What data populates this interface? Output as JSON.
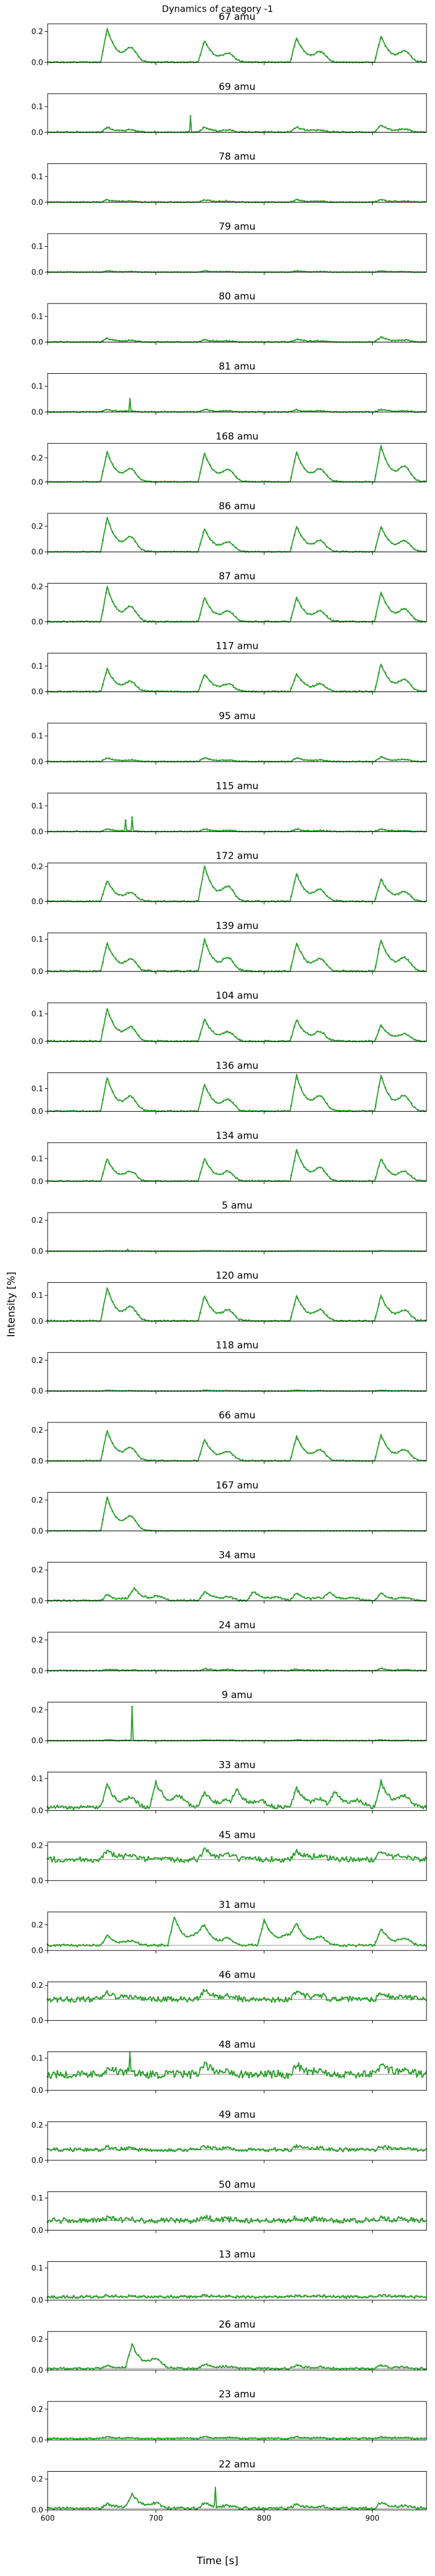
{
  "figure": {
    "title": "Dynamics of category -1",
    "ylabel": "Intensity [%]",
    "xlabel": "Time [s]",
    "series_color": "#2ca02c",
    "baseline_color": "#888888"
  },
  "chart_data": {
    "type": "line",
    "x_range": [
      600,
      950
    ],
    "x_ticks": [
      600,
      700,
      800,
      900
    ],
    "x_tick_labels": [
      "600",
      "700",
      "800",
      "900"
    ],
    "peak_times": [
      655,
      745,
      830,
      908
    ],
    "panels": [
      {
        "title": "67 amu",
        "ylim": [
          0,
          0.25
        ],
        "yticks": [
          0.0,
          0.2
        ],
        "ytick_labels": [
          "0.0",
          "0.2"
        ],
        "amps": [
          0.22,
          0.14,
          0.16,
          0.17
        ],
        "noise": 0.004
      },
      {
        "title": "69 amu",
        "ylim": [
          0,
          0.15
        ],
        "yticks": [
          0.0,
          0.1
        ],
        "ytick_labels": [
          "0.0",
          "0.1"
        ],
        "amps": [
          0.02,
          0.02,
          0.02,
          0.03
        ],
        "noise": 0.003,
        "spikes": [
          [
            732,
            0.06
          ]
        ]
      },
      {
        "title": "78 amu",
        "ylim": [
          0,
          0.15
        ],
        "yticks": [
          0.0,
          0.1
        ],
        "ytick_labels": [
          "0.0",
          "0.1"
        ],
        "amps": [
          0.01,
          0.01,
          0.01,
          0.01
        ],
        "noise": 0.002
      },
      {
        "title": "79 amu",
        "ylim": [
          0,
          0.15
        ],
        "yticks": [
          0.0,
          0.1
        ],
        "ytick_labels": [
          "0.0",
          "0.1"
        ],
        "amps": [
          0.005,
          0.005,
          0.005,
          0.005
        ],
        "noise": 0.001
      },
      {
        "title": "80 amu",
        "ylim": [
          0,
          0.15
        ],
        "yticks": [
          0.0,
          0.1
        ],
        "ytick_labels": [
          "0.0",
          "0.1"
        ],
        "amps": [
          0.015,
          0.01,
          0.012,
          0.02
        ],
        "noise": 0.002
      },
      {
        "title": "81 amu",
        "ylim": [
          0,
          0.15
        ],
        "yticks": [
          0.0,
          0.1
        ],
        "ytick_labels": [
          "0.0",
          "0.1"
        ],
        "amps": [
          0.01,
          0.01,
          0.01,
          0.01
        ],
        "noise": 0.002,
        "spikes": [
          [
            676,
            0.05
          ]
        ]
      },
      {
        "title": "168 amu",
        "ylim": [
          0,
          0.32
        ],
        "yticks": [
          0.0,
          0.2
        ],
        "ytick_labels": [
          "0.0",
          "0.2"
        ],
        "amps": [
          0.25,
          0.24,
          0.25,
          0.3
        ],
        "noise": 0.004
      },
      {
        "title": "86 amu",
        "ylim": [
          0,
          0.3
        ],
        "yticks": [
          0.0,
          0.2
        ],
        "ytick_labels": [
          "0.0",
          "0.2"
        ],
        "amps": [
          0.27,
          0.18,
          0.2,
          0.2
        ],
        "noise": 0.004
      },
      {
        "title": "87 amu",
        "ylim": [
          0,
          0.22
        ],
        "yticks": [
          0.0,
          0.2
        ],
        "ytick_labels": [
          "0.0",
          "0.2"
        ],
        "amps": [
          0.2,
          0.14,
          0.14,
          0.17
        ],
        "noise": 0.004
      },
      {
        "title": "117 amu",
        "ylim": [
          0,
          0.15
        ],
        "yticks": [
          0.0,
          0.1
        ],
        "ytick_labels": [
          "0.0",
          "0.1"
        ],
        "amps": [
          0.09,
          0.07,
          0.07,
          0.11
        ],
        "noise": 0.003
      },
      {
        "title": "95 amu",
        "ylim": [
          0,
          0.15
        ],
        "yticks": [
          0.0,
          0.1
        ],
        "ytick_labels": [
          "0.0",
          "0.1"
        ],
        "amps": [
          0.015,
          0.015,
          0.015,
          0.02
        ],
        "noise": 0.002
      },
      {
        "title": "115 amu",
        "ylim": [
          0,
          0.15
        ],
        "yticks": [
          0.0,
          0.1
        ],
        "ytick_labels": [
          "0.0",
          "0.1"
        ],
        "amps": [
          0.01,
          0.01,
          0.01,
          0.01
        ],
        "noise": 0.002,
        "spikes": [
          [
            672,
            0.04
          ],
          [
            678,
            0.05
          ]
        ]
      },
      {
        "title": "172 amu",
        "ylim": [
          0,
          0.22
        ],
        "yticks": [
          0.0,
          0.2
        ],
        "ytick_labels": [
          "0.0",
          "0.2"
        ],
        "amps": [
          0.12,
          0.2,
          0.16,
          0.13
        ],
        "noise": 0.004
      },
      {
        "title": "139 amu",
        "ylim": [
          0,
          0.12
        ],
        "yticks": [
          0.0,
          0.1
        ],
        "ytick_labels": [
          "0.0",
          "0.1"
        ],
        "amps": [
          0.09,
          0.1,
          0.09,
          0.1
        ],
        "noise": 0.003
      },
      {
        "title": "104 amu",
        "ylim": [
          0,
          0.14
        ],
        "yticks": [
          0.0,
          0.1
        ],
        "ytick_labels": [
          "0.0",
          "0.1"
        ],
        "amps": [
          0.12,
          0.08,
          0.08,
          0.06
        ],
        "noise": 0.003
      },
      {
        "title": "136 amu",
        "ylim": [
          0,
          0.17
        ],
        "yticks": [
          0.0,
          0.1
        ],
        "ytick_labels": [
          "0.0",
          "0.1"
        ],
        "amps": [
          0.15,
          0.12,
          0.16,
          0.16
        ],
        "noise": 0.003
      },
      {
        "title": "134 amu",
        "ylim": [
          0,
          0.17
        ],
        "yticks": [
          0.0,
          0.1
        ],
        "ytick_labels": [
          "0.0",
          "0.1"
        ],
        "amps": [
          0.1,
          0.1,
          0.14,
          0.1
        ],
        "noise": 0.003
      },
      {
        "title": "5 amu",
        "ylim": [
          0,
          0.25
        ],
        "yticks": [
          0.0,
          0.2
        ],
        "ytick_labels": [
          "0.0",
          "0.2"
        ],
        "amps": [
          0.003,
          0.003,
          0.003,
          0.003
        ],
        "noise": 0.001,
        "spikes": [
          [
            674,
            0.012
          ]
        ]
      },
      {
        "title": "120 amu",
        "ylim": [
          0,
          0.15
        ],
        "yticks": [
          0.0,
          0.1
        ],
        "ytick_labels": [
          "0.0",
          "0.1"
        ],
        "amps": [
          0.13,
          0.1,
          0.1,
          0.1
        ],
        "noise": 0.003
      },
      {
        "title": "118 amu",
        "ylim": [
          0,
          0.25
        ],
        "yticks": [
          0.0,
          0.2
        ],
        "ytick_labels": [
          "0.0",
          "0.2"
        ],
        "amps": [
          0.005,
          0.005,
          0.005,
          0.005
        ],
        "noise": 0.001
      },
      {
        "title": "66 amu",
        "ylim": [
          0,
          0.25
        ],
        "yticks": [
          0.0,
          0.2
        ],
        "ytick_labels": [
          "0.0",
          "0.2"
        ],
        "amps": [
          0.2,
          0.14,
          0.16,
          0.17
        ],
        "noise": 0.004
      },
      {
        "title": "167 amu",
        "ylim": [
          0,
          0.25
        ],
        "yticks": [
          0.0,
          0.2
        ],
        "ytick_labels": [
          "0.0",
          "0.2"
        ],
        "amps": [
          0.22,
          0.0,
          0.0,
          0.0
        ],
        "noise": 0.002
      },
      {
        "title": "34 amu",
        "ylim": [
          0,
          0.25
        ],
        "yticks": [
          0.0,
          0.2
        ],
        "ytick_labels": [
          "0.0",
          "0.2"
        ],
        "amps": [
          0.04,
          0.06,
          0.05,
          0.05
        ],
        "noise": 0.006,
        "extra": [
          [
            680,
            0.07
          ],
          [
            790,
            0.06
          ],
          [
            860,
            0.05
          ]
        ]
      },
      {
        "title": "24 amu",
        "ylim": [
          0,
          0.25
        ],
        "yticks": [
          0.0,
          0.2
        ],
        "ytick_labels": [
          "0.0",
          "0.2"
        ],
        "amps": [
          0.01,
          0.015,
          0.01,
          0.015
        ],
        "noise": 0.004
      },
      {
        "title": "9 amu",
        "ylim": [
          0,
          0.25
        ],
        "yticks": [
          0.0,
          0.2
        ],
        "ytick_labels": [
          "0.0",
          "0.2"
        ],
        "amps": [
          0.005,
          0.005,
          0.005,
          0.005
        ],
        "noise": 0.002,
        "spikes": [
          [
            678,
            0.22
          ]
        ]
      },
      {
        "title": "33 amu",
        "ylim": [
          0,
          0.12
        ],
        "yticks": [
          0.0,
          0.1
        ],
        "ytick_labels": [
          "0.0",
          "0.1"
        ],
        "amps": [
          0.07,
          0.05,
          0.06,
          0.08
        ],
        "noise": 0.006,
        "base": 0.01,
        "extra": [
          [
            700,
            0.08
          ],
          [
            775,
            0.05
          ],
          [
            865,
            0.05
          ]
        ]
      },
      {
        "title": "45 amu",
        "ylim": [
          0,
          0.22
        ],
        "yticks": [
          0.0,
          0.2
        ],
        "ytick_labels": [
          "0.0",
          "0.2"
        ],
        "amps": [
          0.05,
          0.06,
          0.05,
          0.05
        ],
        "noise": 0.015,
        "base": 0.12
      },
      {
        "title": "31 amu",
        "ylim": [
          0,
          0.3
        ],
        "yticks": [
          0.0,
          0.2
        ],
        "ytick_labels": [
          "0.0",
          "0.2"
        ],
        "amps": [
          0.08,
          0.12,
          0.15,
          0.13
        ],
        "noise": 0.008,
        "base": 0.04,
        "extra": [
          [
            717,
            0.22
          ],
          [
            800,
            0.2
          ]
        ]
      },
      {
        "title": "46 amu",
        "ylim": [
          0,
          0.22
        ],
        "yticks": [
          0.0,
          0.2
        ],
        "ytick_labels": [
          "0.0",
          "0.2"
        ],
        "amps": [
          0.04,
          0.05,
          0.05,
          0.04
        ],
        "noise": 0.015,
        "base": 0.12
      },
      {
        "title": "48 amu",
        "ylim": [
          0,
          0.12
        ],
        "yticks": [
          0.0,
          0.1
        ],
        "ytick_labels": [
          "0.0",
          "0.1"
        ],
        "amps": [
          0.02,
          0.03,
          0.03,
          0.03
        ],
        "noise": 0.012,
        "base": 0.05,
        "spikes": [
          [
            676,
            0.1
          ]
        ]
      },
      {
        "title": "49 amu",
        "ylim": [
          0,
          0.22
        ],
        "yticks": [
          0.0,
          0.2
        ],
        "ytick_labels": [
          "0.0",
          "0.2"
        ],
        "amps": [
          0.02,
          0.02,
          0.02,
          0.02
        ],
        "noise": 0.01,
        "base": 0.06
      },
      {
        "title": "50 amu",
        "ylim": [
          0,
          0.12
        ],
        "yticks": [
          0.0,
          0.1
        ],
        "ytick_labels": [
          "0.0",
          "0.1"
        ],
        "amps": [
          0.01,
          0.01,
          0.01,
          0.01
        ],
        "noise": 0.008,
        "base": 0.03
      },
      {
        "title": "13 amu",
        "ylim": [
          0,
          0.12
        ],
        "yticks": [
          0.0,
          0.1
        ],
        "ytick_labels": [
          "0.0",
          "0.1"
        ],
        "amps": [
          0.005,
          0.005,
          0.005,
          0.005
        ],
        "noise": 0.004,
        "base": 0.01
      },
      {
        "title": "26 amu",
        "ylim": [
          0,
          0.25
        ],
        "yticks": [
          0.0,
          0.2
        ],
        "ytick_labels": [
          "0.0",
          "0.2"
        ],
        "amps": [
          0.02,
          0.03,
          0.02,
          0.02
        ],
        "noise": 0.006,
        "base": 0.01,
        "extra": [
          [
            678,
            0.15
          ]
        ]
      },
      {
        "title": "23 amu",
        "ylim": [
          0,
          0.25
        ],
        "yticks": [
          0.0,
          0.2
        ],
        "ytick_labels": [
          "0.0",
          "0.2"
        ],
        "amps": [
          0.01,
          0.01,
          0.01,
          0.01
        ],
        "noise": 0.004,
        "base": 0.01
      },
      {
        "title": "22 amu",
        "ylim": [
          0,
          0.25
        ],
        "yticks": [
          0.0,
          0.2
        ],
        "ytick_labels": [
          "0.0",
          "0.2"
        ],
        "amps": [
          0.03,
          0.04,
          0.03,
          0.04
        ],
        "noise": 0.008,
        "base": 0.01,
        "extra": [
          [
            678,
            0.08
          ]
        ],
        "spikes": [
          [
            755,
            0.13
          ]
        ]
      }
    ]
  }
}
